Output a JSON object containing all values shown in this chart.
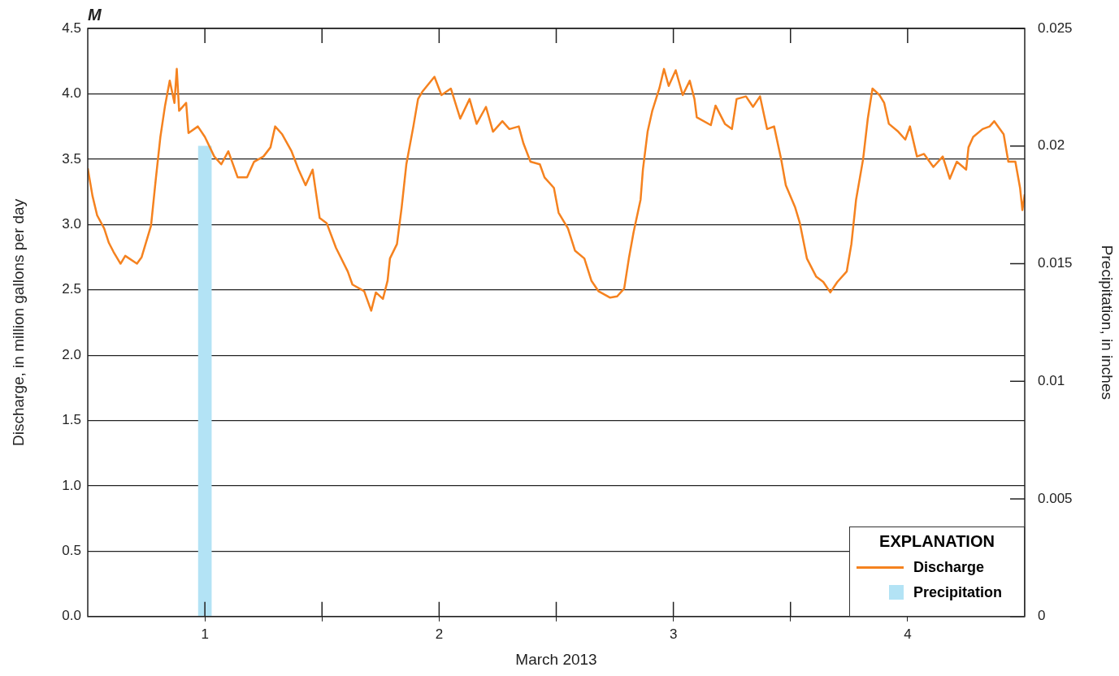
{
  "chart_data": {
    "type": "line",
    "title": "M",
    "xlabel": "March 2013",
    "ylabel": "Discharge, in million gallons per day",
    "y2label": "Precipitation, in inches",
    "legend_title": "EXPLANATION",
    "xlim": [
      0.5,
      4.5
    ],
    "xticks": [
      {
        "value": 1,
        "label": "1"
      },
      {
        "value": 1.5,
        "label": null
      },
      {
        "value": 2,
        "label": "2"
      },
      {
        "value": 2.5,
        "label": null
      },
      {
        "value": 3,
        "label": "3"
      },
      {
        "value": 3.5,
        "label": null
      },
      {
        "value": 4,
        "label": "4"
      }
    ],
    "ylim": [
      0,
      4.5
    ],
    "yticks": [
      {
        "value": 0,
        "label": "0.0"
      },
      {
        "value": 0.5,
        "label": "0.5"
      },
      {
        "value": 1,
        "label": "1.0"
      },
      {
        "value": 1.5,
        "label": "1.5"
      },
      {
        "value": 2,
        "label": "2.0"
      },
      {
        "value": 2.5,
        "label": "2.5"
      },
      {
        "value": 3,
        "label": "3.0"
      },
      {
        "value": 3.5,
        "label": "3.5"
      },
      {
        "value": 4,
        "label": "4.0"
      },
      {
        "value": 4.5,
        "label": "4.5"
      }
    ],
    "y2lim": [
      0,
      0.025
    ],
    "y2ticks": [
      0,
      0.005,
      0.01,
      0.015,
      0.02,
      0.025
    ],
    "grid": "y",
    "legend": "bottom right",
    "series": [
      {
        "name": "Discharge",
        "color": "#f5821f",
        "x": [
          0.5,
          0.52,
          0.54,
          0.57,
          0.59,
          0.61,
          0.64,
          0.66,
          0.71,
          0.73,
          0.77,
          0.79,
          0.81,
          0.83,
          0.85,
          0.87,
          0.88,
          0.89,
          0.92,
          0.93,
          0.97,
          1.0,
          1.04,
          1.07,
          1.1,
          1.14,
          1.18,
          1.21,
          1.25,
          1.28,
          1.3,
          1.33,
          1.37,
          1.4,
          1.43,
          1.46,
          1.49,
          1.52,
          1.56,
          1.61,
          1.63,
          1.68,
          1.71,
          1.73,
          1.76,
          1.78,
          1.79,
          1.82,
          1.84,
          1.86,
          1.89,
          1.91,
          1.93,
          1.98,
          2.01,
          2.05,
          2.09,
          2.13,
          2.16,
          2.2,
          2.23,
          2.27,
          2.3,
          2.34,
          2.36,
          2.39,
          2.43,
          2.45,
          2.49,
          2.51,
          2.55,
          2.58,
          2.62,
          2.65,
          2.68,
          2.73,
          2.76,
          2.79,
          2.81,
          2.83,
          2.86,
          2.87,
          2.89,
          2.91,
          2.94,
          2.96,
          2.98,
          3.01,
          3.04,
          3.07,
          3.09,
          3.1,
          3.16,
          3.18,
          3.22,
          3.25,
          3.27,
          3.31,
          3.34,
          3.37,
          3.4,
          3.43,
          3.46,
          3.48,
          3.52,
          3.54,
          3.57,
          3.61,
          3.64,
          3.67,
          3.7,
          3.74,
          3.76,
          3.78,
          3.81,
          3.83,
          3.85,
          3.88,
          3.9,
          3.92,
          3.96,
          3.99,
          4.01,
          4.04,
          4.07,
          4.11,
          4.15,
          4.18,
          4.21,
          4.25,
          4.26,
          4.28,
          4.32,
          4.35,
          4.37,
          4.41,
          4.43,
          4.46,
          4.48,
          4.49,
          4.5
        ],
        "values": [
          3.43,
          3.22,
          3.07,
          2.97,
          2.86,
          2.79,
          2.7,
          2.76,
          2.7,
          2.75,
          2.99,
          3.34,
          3.67,
          3.91,
          4.1,
          3.93,
          4.19,
          3.87,
          3.93,
          3.7,
          3.75,
          3.67,
          3.52,
          3.46,
          3.56,
          3.36,
          3.36,
          3.48,
          3.52,
          3.59,
          3.75,
          3.69,
          3.56,
          3.42,
          3.3,
          3.42,
          3.05,
          3.01,
          2.82,
          2.64,
          2.54,
          2.49,
          2.34,
          2.48,
          2.43,
          2.57,
          2.74,
          2.85,
          3.13,
          3.46,
          3.75,
          3.96,
          4.02,
          4.13,
          3.99,
          4.04,
          3.81,
          3.96,
          3.77,
          3.9,
          3.71,
          3.79,
          3.73,
          3.75,
          3.62,
          3.48,
          3.46,
          3.36,
          3.28,
          3.09,
          2.97,
          2.8,
          2.74,
          2.57,
          2.49,
          2.44,
          2.45,
          2.51,
          2.74,
          2.94,
          3.19,
          3.42,
          3.71,
          3.87,
          4.04,
          4.19,
          4.06,
          4.18,
          3.99,
          4.1,
          3.96,
          3.82,
          3.76,
          3.91,
          3.77,
          3.73,
          3.96,
          3.98,
          3.9,
          3.98,
          3.73,
          3.75,
          3.5,
          3.3,
          3.13,
          3.01,
          2.74,
          2.6,
          2.56,
          2.48,
          2.56,
          2.64,
          2.85,
          3.19,
          3.5,
          3.81,
          4.04,
          3.99,
          3.93,
          3.77,
          3.71,
          3.65,
          3.75,
          3.52,
          3.54,
          3.44,
          3.52,
          3.35,
          3.48,
          3.42,
          3.59,
          3.67,
          3.73,
          3.75,
          3.79,
          3.69,
          3.48,
          3.48,
          3.28,
          3.11,
          3.23
        ]
      },
      {
        "name": "Precipitation",
        "type": "bar",
        "axis": "y2",
        "color": "#b3e3f5",
        "x": [
          1
        ],
        "values": [
          0.02
        ]
      }
    ]
  }
}
